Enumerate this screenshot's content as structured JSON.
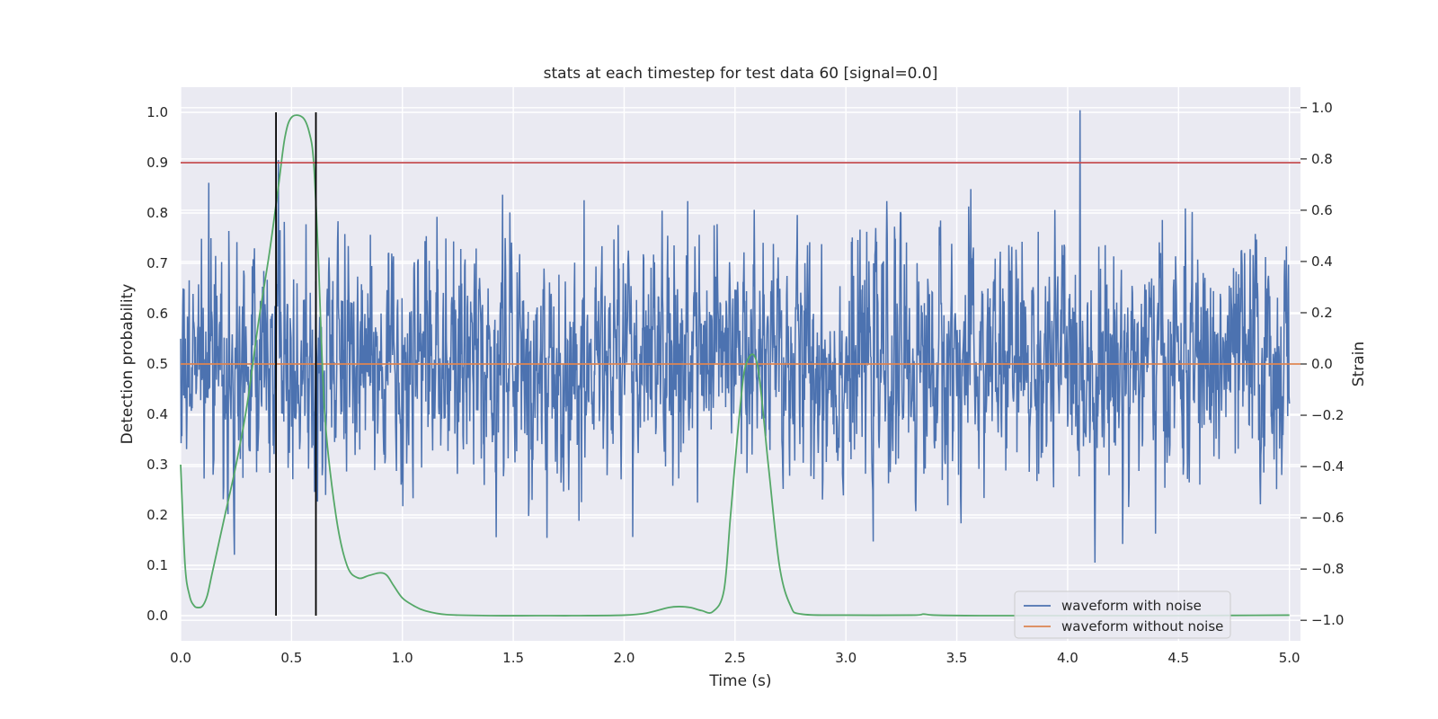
{
  "chart_data": {
    "type": "line",
    "title": "stats at each timestep for test data 60 [signal=0.0]",
    "xlabel": "Time (s)",
    "ylabel": "Detection probability",
    "y2label": "Strain",
    "xlim": [
      0.0,
      5.05
    ],
    "ylim": [
      -0.05,
      1.05
    ],
    "y2lim": [
      -1.08,
      1.08
    ],
    "x_ticks": [
      "0.0",
      "0.5",
      "1.0",
      "1.5",
      "2.0",
      "2.5",
      "3.0",
      "3.5",
      "4.0",
      "4.5",
      "5.0"
    ],
    "y_ticks": [
      "0.0",
      "0.1",
      "0.2",
      "0.3",
      "0.4",
      "0.5",
      "0.6",
      "0.7",
      "0.8",
      "0.9",
      "1.0"
    ],
    "y2_ticks": [
      "−1.0",
      "−0.8",
      "−0.6",
      "−0.4",
      "−0.2",
      "0.0",
      "0.2",
      "0.4",
      "0.6",
      "0.8",
      "1.0"
    ],
    "grid": true,
    "legend_position": "lower-right",
    "colors": {
      "noise": "#4c72b0",
      "clean": "#dd8452",
      "probability": "#55a868",
      "threshold": "#c44e52",
      "markers": "#000000",
      "background": "#eaeaf2",
      "grid": "#ffffff"
    },
    "series": [
      {
        "name": "waveform with noise",
        "axis": "right",
        "style": "dense noise, amplitude range approx -1.0 to 1.0",
        "x_range": [
          0.0,
          5.0
        ]
      },
      {
        "name": "waveform without noise",
        "axis": "right",
        "x": [
          0.0,
          5.05
        ],
        "y": [
          0.0,
          0.0
        ]
      },
      {
        "axis": "left",
        "x": [
          0.0,
          0.02,
          0.04,
          0.06,
          0.08,
          0.1,
          0.12,
          0.14,
          0.16,
          0.2,
          0.25,
          0.3,
          0.35,
          0.4,
          0.44,
          0.47,
          0.5,
          0.55,
          0.58,
          0.6,
          0.62,
          0.65,
          0.7,
          0.75,
          0.8,
          0.85,
          0.9,
          0.93,
          0.96,
          1.0,
          1.05,
          1.1,
          1.2,
          1.4,
          1.6,
          1.8,
          2.0,
          2.1,
          2.2,
          2.25,
          2.3,
          2.35,
          2.4,
          2.45,
          2.48,
          2.52,
          2.55,
          2.6,
          2.65,
          2.7,
          2.75,
          2.8,
          3.0,
          3.3,
          3.35,
          3.4,
          3.6,
          4.0,
          4.5,
          5.0
        ],
        "y": [
          0.3,
          0.1,
          0.04,
          0.02,
          0.016,
          0.02,
          0.04,
          0.08,
          0.12,
          0.2,
          0.3,
          0.42,
          0.58,
          0.72,
          0.85,
          0.95,
          0.99,
          0.99,
          0.96,
          0.9,
          0.72,
          0.4,
          0.2,
          0.1,
          0.075,
          0.08,
          0.085,
          0.08,
          0.06,
          0.035,
          0.02,
          0.01,
          0.002,
          0.0,
          0.0,
          0.0,
          0.001,
          0.005,
          0.016,
          0.018,
          0.016,
          0.01,
          0.008,
          0.05,
          0.2,
          0.4,
          0.5,
          0.5,
          0.3,
          0.1,
          0.02,
          0.003,
          0.001,
          0.001,
          0.003,
          0.001,
          0.0,
          0.0,
          0.0,
          0.001
        ]
      },
      {
        "axis": "left",
        "y": [
          0.9,
          0.9
        ]
      }
    ],
    "vertical_markers": [
      0.43,
      0.61
    ]
  }
}
